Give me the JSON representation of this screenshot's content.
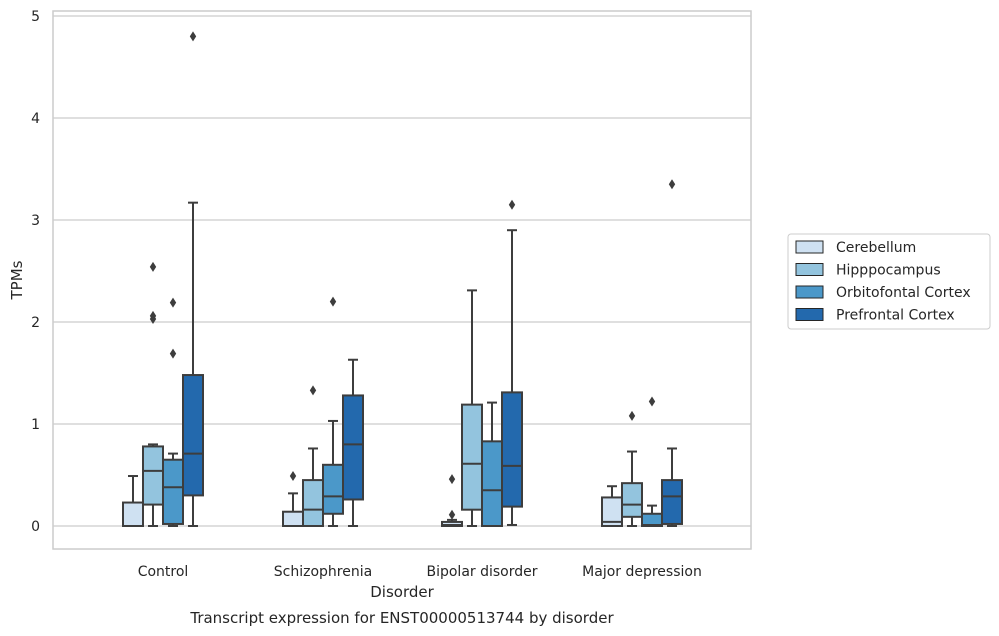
{
  "chart_data": {
    "type": "box",
    "title": "",
    "caption": "Transcript expression for ENST00000513744 by disorder",
    "xlabel": "Disorder",
    "ylabel": "TPMs",
    "ylim": [
      -0.23,
      5.05
    ],
    "yticks": [
      0,
      1,
      2,
      3,
      4,
      5
    ],
    "grid": "horizontal",
    "legend_position": "right",
    "categories": [
      "Control",
      "Schizophrenia",
      "Bipolar disorder",
      "Major depression"
    ],
    "series": [
      {
        "name": "Cerebellum",
        "color": "#cfe1f2",
        "boxes": [
          {
            "whislo": 0.0,
            "q1": 0.0,
            "med": 0.0,
            "q3": 0.23,
            "whishi": 0.49,
            "fliers": []
          },
          {
            "whislo": 0.0,
            "q1": 0.0,
            "med": 0.0,
            "q3": 0.14,
            "whishi": 0.32,
            "fliers": [
              0.49
            ]
          },
          {
            "whislo": 0.0,
            "q1": 0.0,
            "med": 0.01,
            "q3": 0.04,
            "whishi": 0.06,
            "fliers": [
              0.11,
              0.46
            ]
          },
          {
            "whislo": 0.0,
            "q1": 0.0,
            "med": 0.04,
            "q3": 0.28,
            "whishi": 0.39,
            "fliers": []
          }
        ]
      },
      {
        "name": "Hipppocampus",
        "color": "#93c4de",
        "boxes": [
          {
            "whislo": 0.0,
            "q1": 0.21,
            "med": 0.54,
            "q3": 0.78,
            "whishi": 0.8,
            "fliers": [
              2.03,
              2.06,
              2.54
            ]
          },
          {
            "whislo": 0.0,
            "q1": 0.0,
            "med": 0.16,
            "q3": 0.45,
            "whishi": 0.76,
            "fliers": [
              1.33
            ]
          },
          {
            "whislo": 0.0,
            "q1": 0.16,
            "med": 0.61,
            "q3": 1.19,
            "whishi": 2.31,
            "fliers": []
          },
          {
            "whislo": 0.0,
            "q1": 0.09,
            "med": 0.21,
            "q3": 0.42,
            "whishi": 0.73,
            "fliers": [
              1.08
            ]
          }
        ]
      },
      {
        "name": "Orbitofontal Cortex",
        "color": "#4b98c9",
        "boxes": [
          {
            "whislo": 0.0,
            "q1": 0.02,
            "med": 0.38,
            "q3": 0.65,
            "whishi": 0.71,
            "fliers": [
              1.69,
              2.19
            ]
          },
          {
            "whislo": 0.0,
            "q1": 0.12,
            "med": 0.29,
            "q3": 0.6,
            "whishi": 1.03,
            "fliers": [
              2.2
            ]
          },
          {
            "whislo": 0.0,
            "q1": 0.0,
            "med": 0.35,
            "q3": 0.83,
            "whishi": 1.21,
            "fliers": []
          },
          {
            "whislo": 0.0,
            "q1": 0.0,
            "med": 0.01,
            "q3": 0.12,
            "whishi": 0.2,
            "fliers": [
              1.22
            ]
          }
        ]
      },
      {
        "name": "Prefrontal Cortex",
        "color": "#2369ad",
        "boxes": [
          {
            "whislo": 0.0,
            "q1": 0.3,
            "med": 0.71,
            "q3": 1.48,
            "whishi": 3.17,
            "fliers": [
              4.8
            ]
          },
          {
            "whislo": 0.0,
            "q1": 0.26,
            "med": 0.8,
            "q3": 1.28,
            "whishi": 1.63,
            "fliers": []
          },
          {
            "whislo": 0.01,
            "q1": 0.19,
            "med": 0.59,
            "q3": 1.31,
            "whishi": 2.9,
            "fliers": [
              3.15
            ]
          },
          {
            "whislo": 0.0,
            "q1": 0.02,
            "med": 0.29,
            "q3": 0.45,
            "whishi": 0.76,
            "fliers": [
              3.35
            ]
          }
        ]
      }
    ]
  }
}
